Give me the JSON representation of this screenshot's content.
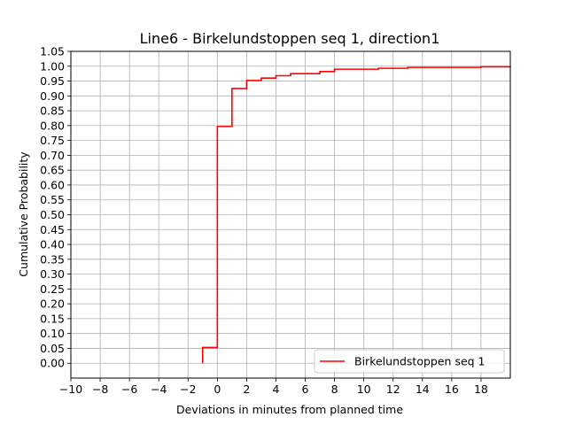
{
  "chart_data": {
    "type": "line",
    "step": "post",
    "title": "Line6 - Birkelundstoppen seq 1, direction1",
    "xlabel": "Deviations in minutes from planned time",
    "ylabel": "Cumulative Probability",
    "xlim": [
      -10,
      20
    ],
    "ylim": [
      -0.05,
      1.05
    ],
    "xticks": [
      -10,
      -8,
      -6,
      -4,
      -2,
      0,
      2,
      4,
      6,
      8,
      10,
      12,
      14,
      16,
      18
    ],
    "xtick_labels": [
      "−10",
      "−8",
      "−6",
      "−4",
      "−2",
      "0",
      "2",
      "4",
      "6",
      "8",
      "10",
      "12",
      "14",
      "16",
      "18"
    ],
    "yticks": [
      0.0,
      0.05,
      0.1,
      0.15,
      0.2,
      0.25,
      0.3,
      0.35,
      0.4,
      0.45,
      0.5,
      0.55,
      0.6,
      0.65,
      0.7,
      0.75,
      0.8,
      0.85,
      0.9,
      0.95,
      1.0,
      1.05
    ],
    "ytick_labels": [
      "0.00",
      "0.05",
      "0.10",
      "0.15",
      "0.20",
      "0.25",
      "0.30",
      "0.35",
      "0.40",
      "0.45",
      "0.50",
      "0.55",
      "0.60",
      "0.65",
      "0.70",
      "0.75",
      "0.80",
      "0.85",
      "0.90",
      "0.95",
      "1.00",
      "1.05"
    ],
    "grid": true,
    "legend_position": "lower-right",
    "series": [
      {
        "name": "Birkelundstoppen seq 1",
        "color": "#ff0000",
        "x": [
          -1,
          -1,
          0,
          1,
          2,
          3,
          4,
          5,
          7,
          8,
          11,
          13,
          18,
          20
        ],
        "y": [
          0.0,
          0.053,
          0.797,
          0.925,
          0.952,
          0.96,
          0.968,
          0.975,
          0.982,
          0.99,
          0.993,
          0.996,
          0.998,
          1.0
        ]
      }
    ]
  }
}
